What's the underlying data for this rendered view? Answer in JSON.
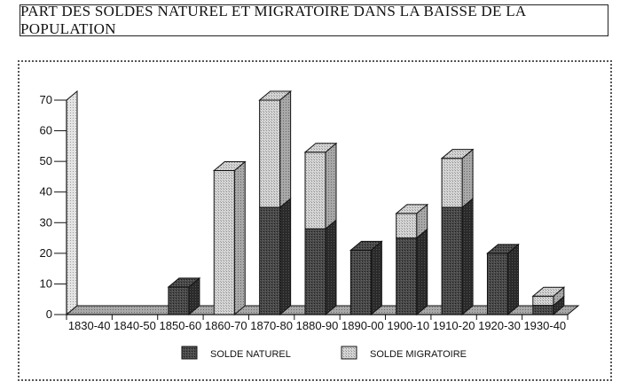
{
  "title": "PART DES SOLDES NATUREL ET MIGRATOIRE DANS LA BAISSE DE LA POPULATION",
  "colors": {
    "naturel": "#3a3a3a",
    "migratoire": "#c4c4c4",
    "ink": "#111111"
  },
  "chart_data": {
    "type": "bar",
    "stacked": true,
    "three_d": true,
    "categories": [
      "1830-40",
      "1840-50",
      "1850-60",
      "1860-70",
      "1870-80",
      "1880-90",
      "1890-00",
      "1900-10",
      "1910-20",
      "1920-30",
      "1930-40"
    ],
    "series": [
      {
        "name": "SOLDE NATUREL",
        "values": [
          0,
          0,
          9,
          0,
          35,
          28,
          21,
          25,
          35,
          20,
          3
        ]
      },
      {
        "name": "SOLDE MIGRATOIRE",
        "values": [
          0,
          0,
          0,
          47,
          35,
          25,
          0,
          8,
          16,
          0,
          3
        ]
      }
    ],
    "yticks": [
      "0",
      "10",
      "20",
      "30",
      "40",
      "50",
      "60",
      "70"
    ],
    "ylim": [
      0,
      70
    ],
    "legend_position": "bottom",
    "grid": false
  }
}
